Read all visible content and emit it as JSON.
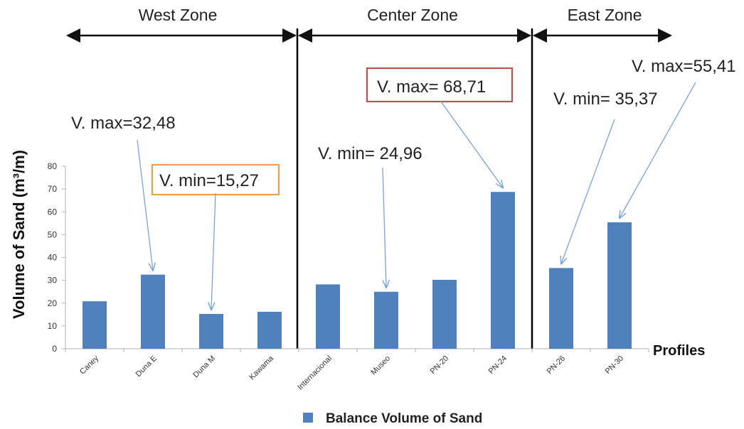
{
  "chart_data": {
    "type": "bar",
    "categories": [
      "Caney",
      "Duna E",
      "Duna M",
      "Kawama",
      "Internacional",
      "Museo",
      "PN-20",
      "PN-24",
      "PN-26",
      "PN-30"
    ],
    "series": [
      {
        "name": "Balance Volume of Sand",
        "color": "#4f81bd",
        "values": [
          20.8,
          32.48,
          15.27,
          16.2,
          28.2,
          24.96,
          30.2,
          68.71,
          35.37,
          55.41
        ]
      }
    ],
    "ylabel": "Volume of  Sand (m³/m)",
    "xlabel": "Profiles",
    "ylim": [
      0,
      80
    ],
    "yticks": [
      0,
      10,
      20,
      30,
      40,
      50,
      60,
      70,
      80
    ],
    "grid": false,
    "legend": "bottom",
    "zones": [
      {
        "label": "West Zone",
        "from": 0,
        "to": 3
      },
      {
        "label": "Center Zone",
        "from": 4,
        "to": 7
      },
      {
        "label": "East Zone",
        "from": 8,
        "to": 9
      }
    ],
    "annotations": [
      {
        "text": "V. max=32,48",
        "target": 1,
        "box": "none"
      },
      {
        "text": "V. min=15,27",
        "target": 2,
        "box": "#f0a04b"
      },
      {
        "text": "V. min= 24,96",
        "target": 5,
        "box": "none"
      },
      {
        "text": "V. max= 68,71",
        "target": 7,
        "box": "#c0504d"
      },
      {
        "text": "V. min= 35,37",
        "target": 8,
        "box": "none"
      },
      {
        "text": "V. max=55,41",
        "target": 9,
        "box": "none"
      }
    ]
  }
}
